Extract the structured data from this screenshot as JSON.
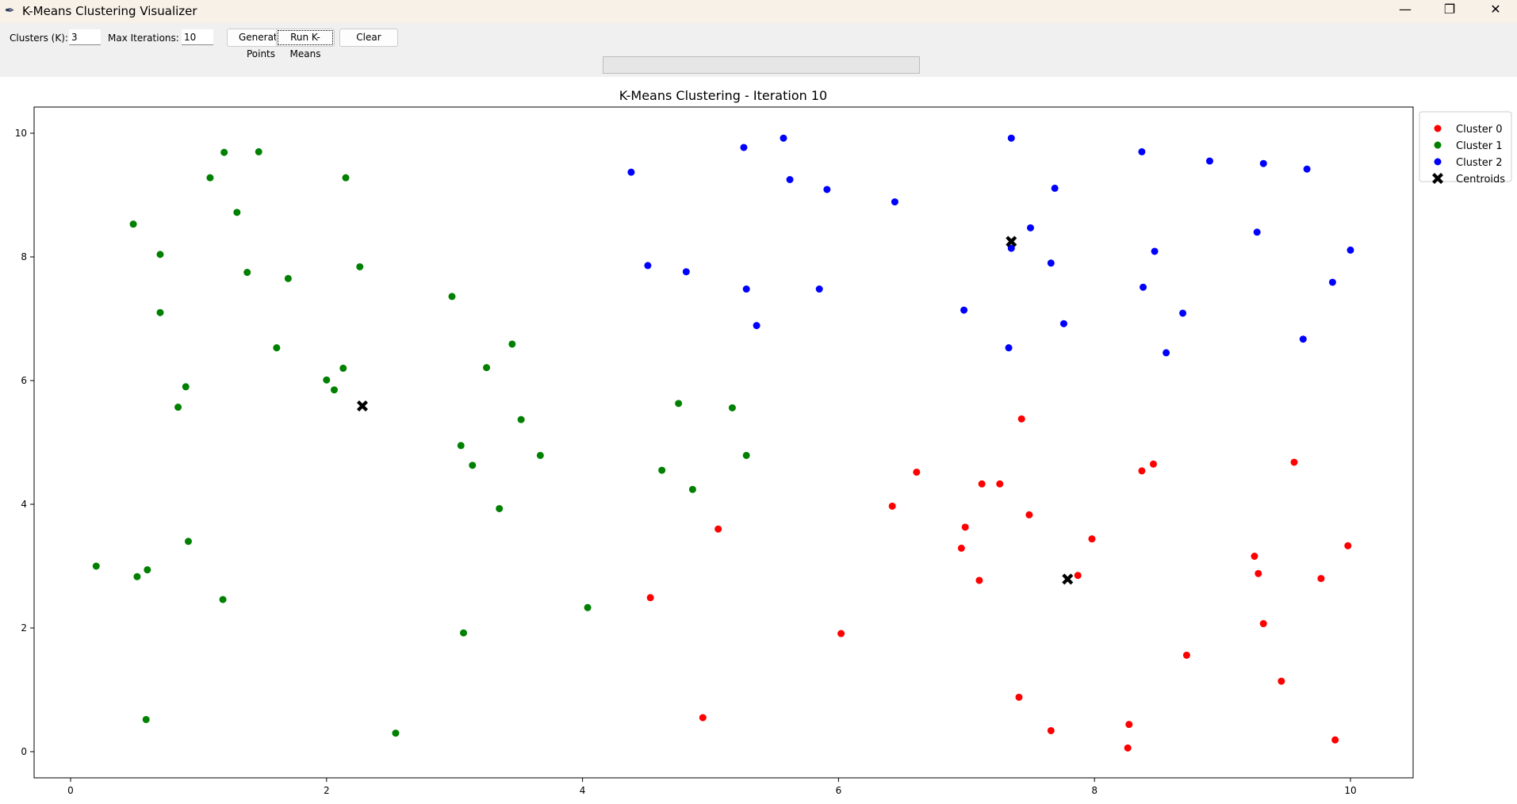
{
  "window": {
    "title": "K-Means Clustering Visualizer",
    "icon": "feather-icon"
  },
  "toolbar": {
    "clusters_label": "Clusters (K):",
    "clusters_value": "3",
    "iter_label": "Max Iterations:",
    "iter_value": "10",
    "generate_label": "Generate Points",
    "run_label": "Run K-Means",
    "clear_label": "Clear",
    "progress": 0
  },
  "chart_data": {
    "type": "scatter",
    "title": "K-Means Clustering - Iteration 10",
    "xlim": [
      -0.3,
      10.5
    ],
    "ylim": [
      -0.45,
      10.4
    ],
    "xticks": [
      0,
      2,
      4,
      6,
      8,
      10
    ],
    "yticks": [
      0,
      2,
      4,
      6,
      8,
      10
    ],
    "legend_position": "outside-right-top",
    "series": [
      {
        "name": "Cluster 0",
        "color": "#ff0000",
        "points": [
          [
            7.43,
            5.38
          ],
          [
            6.61,
            4.52
          ],
          [
            7.12,
            4.33
          ],
          [
            7.26,
            4.33
          ],
          [
            7.49,
            3.83
          ],
          [
            6.42,
            3.97
          ],
          [
            6.99,
            3.63
          ],
          [
            6.96,
            3.29
          ],
          [
            7.1,
            2.77
          ],
          [
            5.06,
            3.6
          ],
          [
            4.53,
            2.49
          ],
          [
            6.02,
            1.91
          ],
          [
            4.94,
            0.55
          ],
          [
            7.98,
            3.44
          ],
          [
            7.87,
            2.85
          ],
          [
            7.41,
            0.88
          ],
          [
            7.66,
            0.34
          ],
          [
            8.27,
            0.44
          ],
          [
            8.26,
            0.06
          ],
          [
            8.37,
            4.54
          ],
          [
            8.46,
            4.65
          ],
          [
            8.72,
            1.56
          ],
          [
            9.25,
            3.16
          ],
          [
            9.28,
            2.88
          ],
          [
            9.32,
            2.07
          ],
          [
            9.46,
            1.14
          ],
          [
            9.56,
            4.68
          ],
          [
            9.77,
            2.8
          ],
          [
            9.98,
            3.33
          ],
          [
            9.88,
            0.19
          ]
        ]
      },
      {
        "name": "Cluster 1",
        "color": "#008000",
        "points": [
          [
            0.49,
            8.53
          ],
          [
            0.7,
            8.04
          ],
          [
            0.7,
            7.1
          ],
          [
            0.9,
            5.9
          ],
          [
            0.84,
            5.57
          ],
          [
            0.92,
            3.4
          ],
          [
            0.2,
            3.0
          ],
          [
            0.52,
            2.83
          ],
          [
            0.6,
            2.94
          ],
          [
            1.19,
            2.46
          ],
          [
            0.59,
            0.52
          ],
          [
            1.09,
            9.28
          ],
          [
            1.2,
            9.69
          ],
          [
            1.47,
            9.7
          ],
          [
            1.3,
            8.72
          ],
          [
            1.38,
            7.75
          ],
          [
            1.7,
            7.65
          ],
          [
            1.61,
            6.53
          ],
          [
            2.15,
            9.28
          ],
          [
            2.26,
            7.84
          ],
          [
            2.0,
            6.01
          ],
          [
            2.06,
            5.85
          ],
          [
            2.13,
            6.2
          ],
          [
            2.98,
            7.36
          ],
          [
            3.45,
            6.59
          ],
          [
            3.25,
            6.21
          ],
          [
            3.52,
            5.37
          ],
          [
            3.05,
            4.95
          ],
          [
            3.14,
            4.63
          ],
          [
            3.67,
            4.79
          ],
          [
            3.35,
            3.93
          ],
          [
            2.54,
            0.3
          ],
          [
            3.07,
            1.92
          ],
          [
            4.04,
            2.33
          ],
          [
            4.75,
            5.63
          ],
          [
            4.62,
            4.55
          ],
          [
            4.86,
            4.24
          ],
          [
            5.17,
            5.56
          ],
          [
            5.28,
            4.79
          ]
        ]
      },
      {
        "name": "Cluster 2",
        "color": "#0000ff",
        "points": [
          [
            4.38,
            9.37
          ],
          [
            4.51,
            7.86
          ],
          [
            4.81,
            7.76
          ],
          [
            5.26,
            9.77
          ],
          [
            5.57,
            9.92
          ],
          [
            5.62,
            9.25
          ],
          [
            5.91,
            9.09
          ],
          [
            5.28,
            7.48
          ],
          [
            5.36,
            6.89
          ],
          [
            5.85,
            7.48
          ],
          [
            6.44,
            8.89
          ],
          [
            7.35,
            9.92
          ],
          [
            7.69,
            9.11
          ],
          [
            7.5,
            8.47
          ],
          [
            7.35,
            8.14
          ],
          [
            7.66,
            7.9
          ],
          [
            6.98,
            7.14
          ],
          [
            7.76,
            6.92
          ],
          [
            7.33,
            6.53
          ],
          [
            8.37,
            9.7
          ],
          [
            8.9,
            9.55
          ],
          [
            9.32,
            9.51
          ],
          [
            9.66,
            9.42
          ],
          [
            9.27,
            8.4
          ],
          [
            8.47,
            8.09
          ],
          [
            8.38,
            7.51
          ],
          [
            8.69,
            7.09
          ],
          [
            8.56,
            6.45
          ],
          [
            10.0,
            8.11
          ],
          [
            9.86,
            7.59
          ],
          [
            9.63,
            6.67
          ]
        ]
      },
      {
        "name": "Centroids",
        "color": "#000000",
        "marker": "X",
        "points": [
          [
            7.35,
            8.25
          ],
          [
            2.28,
            5.59
          ],
          [
            7.79,
            2.79
          ]
        ]
      }
    ]
  }
}
